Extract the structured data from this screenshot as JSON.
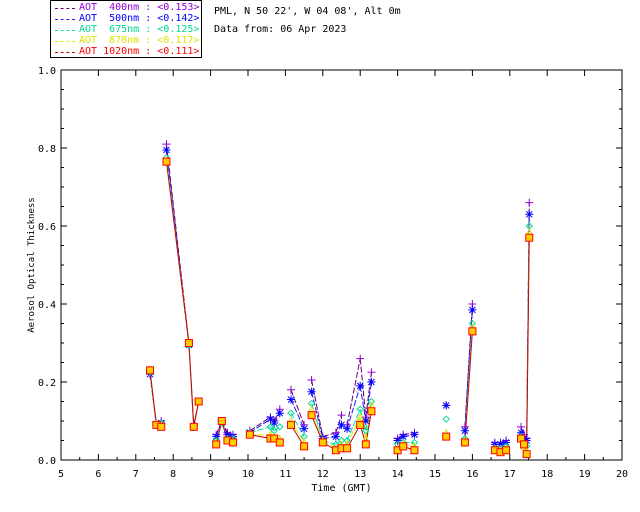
{
  "header": {
    "site": "PML, N 50 22', W 04 08', Alt 0m",
    "date": "Data from: 06 Apr 2023"
  },
  "legend": [
    {
      "label": "AOT  400nm : ",
      "mean": "<0.153>",
      "color": "#6a006a",
      "text_color": "#9400d3",
      "mean_color": "#9400d3"
    },
    {
      "label": "AOT  500nm : ",
      "mean": "<0.142>",
      "color": "#1a1aff",
      "text_color": "#0000ff",
      "mean_color": "#0000ff"
    },
    {
      "label": "AOT  675nm : ",
      "mean": "<0.125>",
      "color": "#00e0b0",
      "text_color": "#00d890",
      "mean_color": "#00d890"
    },
    {
      "label": "AOT  870nm : ",
      "mean": "<0.117>",
      "color": "#e8e800",
      "text_color": "#e0e000",
      "mean_color": "#e0e000"
    },
    {
      "label": "AOT 1020nm : ",
      "mean": "<0.111>",
      "color": "#cc0000",
      "text_color": "#ff0000",
      "mean_color": "#ff0000"
    }
  ],
  "chart_data": {
    "type": "line",
    "xlabel": "Time (GMT)",
    "ylabel": "Aerosol Optical Thickness",
    "xlim": [
      5,
      20
    ],
    "ylim": [
      0.0,
      1.0
    ],
    "xticks": [
      "5",
      "6",
      "7",
      "8",
      "9",
      "10",
      "11",
      "12",
      "13",
      "14",
      "15",
      "16",
      "17",
      "18",
      "19",
      "20"
    ],
    "yticks": [
      "0.0",
      "0.2",
      "0.4",
      "0.6",
      "0.8",
      "1.0"
    ],
    "x": [
      7.38,
      7.55,
      7.68,
      7.82,
      8.42,
      8.55,
      8.68,
      9.15,
      9.3,
      9.45,
      9.6,
      10.05,
      10.6,
      10.7,
      10.85,
      11.15,
      11.5,
      11.7,
      12.0,
      12.35,
      12.5,
      12.65,
      13.0,
      13.15,
      13.3,
      14.0,
      14.15,
      14.45,
      15.3,
      15.8,
      16.0,
      16.6,
      16.75,
      16.9,
      17.3,
      17.38,
      17.45,
      17.52
    ],
    "series": [
      {
        "name": "AOT  400nm",
        "marker": "plus",
        "values": [
          0.225,
          0.095,
          0.1,
          0.81,
          0.3,
          0.09,
          0.15,
          0.065,
          0.1,
          0.07,
          0.065,
          0.075,
          0.11,
          0.1,
          0.13,
          0.18,
          0.09,
          0.205,
          0.06,
          0.07,
          0.115,
          0.09,
          0.26,
          0.11,
          0.225,
          0.055,
          0.065,
          0.07,
          0.14,
          0.085,
          0.4,
          0.045,
          0.045,
          0.05,
          0.085,
          0.065,
          0.055,
          0.66
        ]
      },
      {
        "name": "AOT  500nm",
        "marker": "asterisk",
        "values": [
          0.22,
          0.09,
          0.095,
          0.795,
          0.295,
          0.085,
          0.15,
          0.06,
          0.1,
          0.065,
          0.06,
          0.07,
          0.105,
          0.095,
          0.12,
          0.155,
          0.08,
          0.175,
          0.055,
          0.06,
          0.09,
          0.08,
          0.19,
          0.1,
          0.2,
          0.05,
          0.06,
          0.065,
          0.14,
          0.075,
          0.385,
          0.04,
          0.04,
          0.045,
          0.07,
          0.055,
          0.05,
          0.63
        ]
      },
      {
        "name": "AOT  675nm",
        "marker": "diamond",
        "values": [
          0.225,
          0.09,
          0.095,
          0.775,
          0.295,
          0.085,
          0.15,
          0.05,
          0.095,
          0.055,
          0.055,
          0.07,
          0.085,
          0.075,
          0.085,
          0.12,
          0.06,
          0.145,
          0.05,
          0.04,
          0.05,
          0.05,
          0.13,
          0.075,
          0.15,
          0.04,
          0.045,
          0.045,
          0.105,
          0.055,
          0.35,
          0.03,
          0.03,
          0.035,
          0.06,
          0.04,
          0.035,
          0.6
        ]
      },
      {
        "name": "AOT  870nm",
        "marker": "triangle",
        "values": [
          0.23,
          0.095,
          0.09,
          0.765,
          0.3,
          0.085,
          0.15,
          0.045,
          0.1,
          0.05,
          0.05,
          0.065,
          0.065,
          0.06,
          0.055,
          0.1,
          0.045,
          0.13,
          0.05,
          0.03,
          0.04,
          0.04,
          0.11,
          0.055,
          0.14,
          0.03,
          0.04,
          0.035,
          0.07,
          0.05,
          0.34,
          0.03,
          0.025,
          0.03,
          0.055,
          0.035,
          0.025,
          0.585
        ]
      },
      {
        "name": "AOT 1020nm",
        "marker": "square",
        "values": [
          0.23,
          0.09,
          0.085,
          0.765,
          0.3,
          0.085,
          0.15,
          0.04,
          0.1,
          0.05,
          0.045,
          0.065,
          0.055,
          0.055,
          0.045,
          0.09,
          0.035,
          0.115,
          0.045,
          0.025,
          0.03,
          0.03,
          0.09,
          0.04,
          0.125,
          0.025,
          0.035,
          0.025,
          0.06,
          0.045,
          0.33,
          0.025,
          0.02,
          0.025,
          0.055,
          0.04,
          0.015,
          0.57
        ]
      }
    ],
    "colors": [
      "#6a006a",
      "#1a1aff",
      "#00e0b0",
      "#e8e800",
      "#cc0000"
    ],
    "marker_colors": [
      "#9400d3",
      "#0000ff",
      "#00d890",
      "#e0e000",
      "#ff0000"
    ],
    "marker_fill_last": "#ffcc00",
    "gaps_after": [
      2,
      6,
      10,
      14,
      16,
      20,
      24,
      27,
      28,
      30,
      33
    ],
    "grid": false,
    "legend_position": "top-left, outside plot"
  }
}
